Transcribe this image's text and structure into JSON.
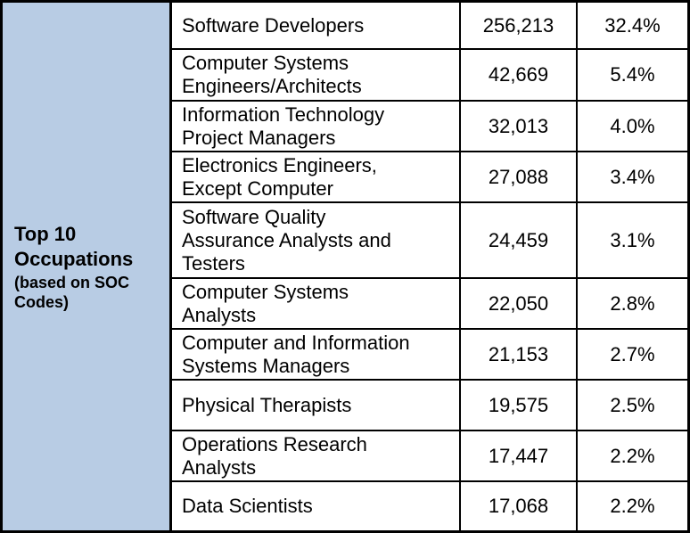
{
  "sidebar": {
    "title": "Top 10\nOccupations",
    "subtitle": "(based on SOC\nCodes)"
  },
  "rows": [
    {
      "occupation": "Software Developers",
      "count": "256,213",
      "percent": "32.4%"
    },
    {
      "occupation": "Computer Systems\nEngineers/Architects",
      "count": "42,669",
      "percent": "5.4%"
    },
    {
      "occupation": "Information Technology\nProject Managers",
      "count": "32,013",
      "percent": "4.0%"
    },
    {
      "occupation": "Electronics Engineers,\nExcept Computer",
      "count": "27,088",
      "percent": "3.4%"
    },
    {
      "occupation": "Software Quality\nAssurance Analysts and\nTesters",
      "count": "24,459",
      "percent": "3.1%"
    },
    {
      "occupation": "Computer Systems\nAnalysts",
      "count": "22,050",
      "percent": "2.8%"
    },
    {
      "occupation": "Computer and Information\nSystems Managers",
      "count": "21,153",
      "percent": "2.7%"
    },
    {
      "occupation": "Physical Therapists",
      "count": "19,575",
      "percent": "2.5%"
    },
    {
      "occupation": "Operations Research\nAnalysts",
      "count": "17,447",
      "percent": "2.2%"
    },
    {
      "occupation": "Data Scientists",
      "count": "17,068",
      "percent": "2.2%"
    }
  ]
}
